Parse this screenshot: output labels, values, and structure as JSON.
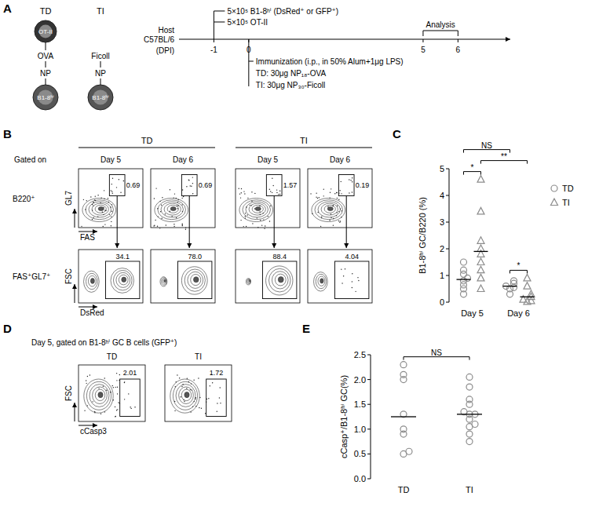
{
  "panel_labels": [
    "A",
    "B",
    "C",
    "D",
    "E"
  ],
  "schematic": {
    "td": {
      "title": "TD",
      "t_cell": "OT-II",
      "antigen": "OVA",
      "hapten": "NP",
      "b_cell": "B1-8ʰⁱ"
    },
    "ti": {
      "title": "TI",
      "carrier": "Ficoll",
      "hapten": "NP",
      "b_cell": "B1-8ʰⁱ"
    }
  },
  "timeline": {
    "host": [
      "Host",
      "C57BL/6"
    ],
    "axis_label": "(DPI)",
    "range": [
      -2,
      7.5
    ],
    "ticks": [
      -1,
      0,
      5,
      6
    ],
    "transfer_day": -1,
    "transfer": [
      "5×10⁵ B1-8ʰⁱ (DsRed⁺ or GFP⁺)",
      "5×10⁵ OT-II"
    ],
    "immunization_day": 0,
    "immunization": [
      "Immunization (i.p., in 50% Alum+1μg LPS)",
      "TD:  30μg NP₁₈-OVA",
      "TI:   30μg NP₃₀-Ficoll"
    ],
    "analysis": "Analysis",
    "analysis_days": [
      5,
      6
    ]
  },
  "flow_b": {
    "groups": [
      "TD",
      "TI"
    ],
    "gated_on": "Gated on",
    "days": [
      "Day 5",
      "Day 6",
      "Day 5",
      "Day 6"
    ],
    "rows": [
      {
        "gate": "B220⁺",
        "x_axis": "FAS",
        "y_axis": "GL7",
        "percents": [
          0.69,
          0.69,
          1.57,
          0.19
        ]
      },
      {
        "gate": "FAS⁺GL7⁺",
        "x_axis": "DsRed",
        "y_axis": "FSC",
        "percents": [
          34.1,
          {
            "value": 78,
            "label": "78.0"
          },
          88.4,
          4.04
        ]
      }
    ]
  },
  "flow_d": {
    "title": "Day 5, gated on B1-8ʰⁱ GC B cells (GFP⁺)",
    "groups": [
      "TD",
      "TI"
    ],
    "x_axis": "cCasp3",
    "y_axis": "FSC",
    "percents": [
      2.01,
      1.72
    ]
  },
  "chart_data": [
    {
      "type": "scatter",
      "y_label": "B1-8ʰⁱ GC/B220 (%)",
      "categories": [
        "Day 5",
        "Day 6"
      ],
      "ylim": [
        0,
        5
      ],
      "yticks": [
        0,
        1,
        2,
        3,
        4,
        5
      ],
      "legend": "right",
      "series": [
        {
          "name": "TD",
          "marker": "circle",
          "color": "#8c8c8c",
          "values": [
            [
              0.3,
              0.5,
              0.65,
              0.8,
              0.9,
              1.05,
              1.2,
              1.5
            ],
            [
              0.3,
              0.5,
              0.55,
              0.6,
              0.7,
              0.8
            ]
          ],
          "means": [
            0.85,
            0.6
          ]
        },
        {
          "name": "TI",
          "marker": "triangle",
          "color": "#8c8c8c",
          "values": [
            [
              0.5,
              0.9,
              1.2,
              1.5,
              1.8,
              2.0,
              2.3,
              3.4,
              4.6
            ],
            [
              0.02,
              0.05,
              0.1,
              0.2,
              0.3,
              0.6,
              0.9
            ]
          ],
          "means": [
            1.9,
            0.2
          ]
        }
      ],
      "significance": [
        {
          "label": "*",
          "from": [
            0,
            0
          ],
          "to": [
            1,
            0
          ]
        },
        {
          "label": "*",
          "from": [
            0,
            1
          ],
          "to": [
            1,
            1
          ]
        },
        {
          "label": "**",
          "from": [
            1,
            0
          ],
          "to": [
            1,
            1
          ]
        },
        {
          "label": "NS",
          "from": [
            0,
            0
          ],
          "to": [
            0,
            1
          ]
        }
      ]
    },
    {
      "type": "scatter",
      "y_label": "cCasp⁺/B1-8ʰⁱ GC(%)",
      "categories": [
        "TD",
        "TI"
      ],
      "ylim": [
        0,
        2.5
      ],
      "yticks": [
        {
          "value": 0,
          "label": "0.0"
        },
        0.5,
        {
          "value": 1,
          "label": "1.0"
        },
        1.5,
        {
          "value": 2,
          "label": "2.0"
        },
        2.5
      ],
      "series": [
        {
          "marker": "circle",
          "color": "#8c8c8c",
          "values": [
            [
              0.5,
              0.55,
              0.9,
              1.0,
              1.3,
              2.0,
              2.1,
              2.3
            ],
            [
              0.75,
              0.9,
              1.05,
              1.1,
              1.2,
              1.3,
              1.3,
              1.35,
              1.5,
              1.6,
              1.85,
              2.05
            ]
          ],
          "means": [
            1.25,
            1.3
          ]
        }
      ],
      "significance": [
        {
          "label": "NS",
          "from": [
            0,
            0
          ],
          "to": [
            0,
            1
          ]
        }
      ]
    }
  ]
}
